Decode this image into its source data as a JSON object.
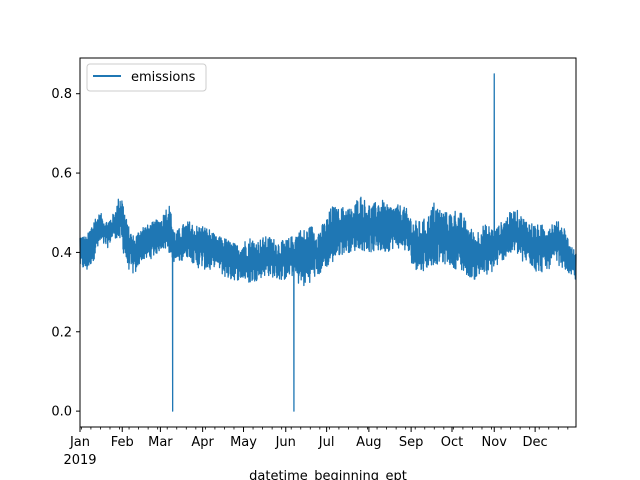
{
  "chart_data": {
    "type": "line",
    "title": "",
    "xlabel": "datetime_beginning_ept",
    "ylabel": "",
    "x_range": [
      "2019-01-01",
      "2019-12-31"
    ],
    "ylim": [
      -0.04,
      0.89
    ],
    "y_ticks": [
      0.0,
      0.2,
      0.4,
      0.6,
      0.8
    ],
    "y_tick_labels": [
      "0.0",
      "0.2",
      "0.4",
      "0.6",
      "0.8"
    ],
    "x_ticks": [
      {
        "label": "Jan",
        "date": "2019-01-01"
      },
      {
        "label": "Feb",
        "date": "2019-02-01"
      },
      {
        "label": "Mar",
        "date": "2019-03-01"
      },
      {
        "label": "Apr",
        "date": "2019-04-01"
      },
      {
        "label": "May",
        "date": "2019-05-01"
      },
      {
        "label": "Jun",
        "date": "2019-06-01"
      },
      {
        "label": "Jul",
        "date": "2019-07-01"
      },
      {
        "label": "Aug",
        "date": "2019-08-01"
      },
      {
        "label": "Sep",
        "date": "2019-09-01"
      },
      {
        "label": "Oct",
        "date": "2019-10-01"
      },
      {
        "label": "Nov",
        "date": "2019-11-01"
      },
      {
        "label": "Dec",
        "date": "2019-12-01"
      }
    ],
    "x_year_label": "2019",
    "grid": false,
    "legend": {
      "placement": "upper-left",
      "entries": [
        "emissions"
      ]
    },
    "series": [
      {
        "name": "emissions",
        "color": "#1f77b4",
        "band": {
          "x": [
            "2019-01-01",
            "2019-01-06",
            "2019-01-11",
            "2019-01-16",
            "2019-01-21",
            "2019-01-26",
            "2019-01-31",
            "2019-02-05",
            "2019-02-10",
            "2019-02-15",
            "2019-02-20",
            "2019-02-25",
            "2019-03-02",
            "2019-03-07",
            "2019-03-12",
            "2019-03-17",
            "2019-03-22",
            "2019-03-27",
            "2019-04-01",
            "2019-04-06",
            "2019-04-11",
            "2019-04-16",
            "2019-04-21",
            "2019-04-26",
            "2019-05-01",
            "2019-05-06",
            "2019-05-11",
            "2019-05-16",
            "2019-05-21",
            "2019-05-26",
            "2019-05-31",
            "2019-06-05",
            "2019-06-10",
            "2019-06-15",
            "2019-06-20",
            "2019-06-25",
            "2019-06-30",
            "2019-07-05",
            "2019-07-10",
            "2019-07-15",
            "2019-07-20",
            "2019-07-25",
            "2019-07-30",
            "2019-08-04",
            "2019-08-09",
            "2019-08-14",
            "2019-08-19",
            "2019-08-24",
            "2019-08-29",
            "2019-09-03",
            "2019-09-08",
            "2019-09-13",
            "2019-09-18",
            "2019-09-23",
            "2019-09-28",
            "2019-10-03",
            "2019-10-08",
            "2019-10-13",
            "2019-10-18",
            "2019-10-23",
            "2019-10-28",
            "2019-11-02",
            "2019-11-07",
            "2019-11-12",
            "2019-11-17",
            "2019-11-22",
            "2019-11-27",
            "2019-12-02",
            "2019-12-07",
            "2019-12-12",
            "2019-12-17",
            "2019-12-22",
            "2019-12-27",
            "2019-12-31"
          ],
          "min": [
            0.36,
            0.35,
            0.38,
            0.42,
            0.41,
            0.44,
            0.42,
            0.36,
            0.34,
            0.38,
            0.38,
            0.39,
            0.41,
            0.4,
            0.37,
            0.38,
            0.39,
            0.36,
            0.36,
            0.35,
            0.37,
            0.34,
            0.33,
            0.33,
            0.33,
            0.32,
            0.33,
            0.34,
            0.34,
            0.33,
            0.33,
            0.34,
            0.32,
            0.31,
            0.33,
            0.34,
            0.36,
            0.37,
            0.39,
            0.4,
            0.4,
            0.41,
            0.4,
            0.4,
            0.4,
            0.4,
            0.41,
            0.41,
            0.4,
            0.36,
            0.35,
            0.36,
            0.37,
            0.37,
            0.37,
            0.36,
            0.35,
            0.34,
            0.33,
            0.34,
            0.34,
            0.36,
            0.38,
            0.39,
            0.4,
            0.37,
            0.37,
            0.35,
            0.35,
            0.36,
            0.37,
            0.36,
            0.34,
            0.33
          ],
          "max": [
            0.45,
            0.44,
            0.49,
            0.5,
            0.48,
            0.5,
            0.56,
            0.47,
            0.44,
            0.47,
            0.47,
            0.48,
            0.49,
            0.53,
            0.45,
            0.47,
            0.48,
            0.47,
            0.47,
            0.46,
            0.44,
            0.44,
            0.43,
            0.42,
            0.43,
            0.44,
            0.43,
            0.44,
            0.44,
            0.43,
            0.43,
            0.44,
            0.46,
            0.46,
            0.47,
            0.46,
            0.48,
            0.52,
            0.51,
            0.52,
            0.51,
            0.55,
            0.53,
            0.52,
            0.54,
            0.52,
            0.52,
            0.52,
            0.51,
            0.48,
            0.48,
            0.49,
            0.53,
            0.51,
            0.5,
            0.51,
            0.5,
            0.47,
            0.45,
            0.47,
            0.47,
            0.46,
            0.48,
            0.5,
            0.51,
            0.49,
            0.48,
            0.47,
            0.47,
            0.48,
            0.48,
            0.47,
            0.42,
            0.4
          ]
        },
        "spikes": [
          {
            "date": "2019-03-10",
            "value": 0.0
          },
          {
            "date": "2019-06-07",
            "value": 0.0
          },
          {
            "date": "2019-11-01",
            "value": 0.85
          }
        ]
      }
    ]
  }
}
